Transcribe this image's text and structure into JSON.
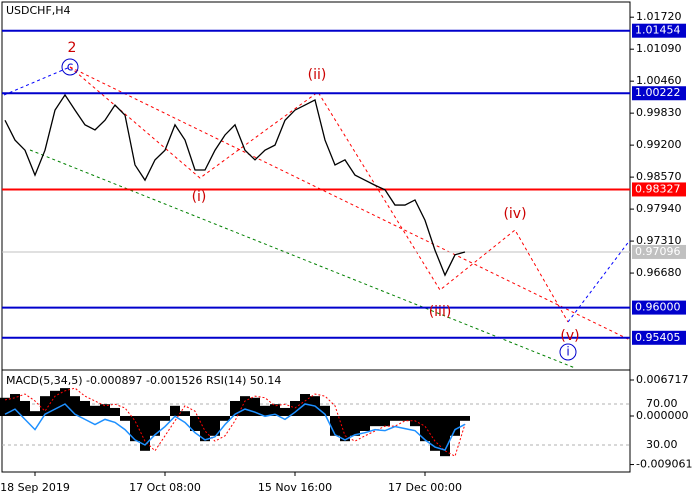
{
  "chart_data": [
    {
      "type": "line",
      "title": "USDCHF,H4",
      "series": [
        {
          "color": "#000000",
          "values": [
            0.9969,
            0.993,
            0.991,
            0.9861,
            0.991,
            0.9989,
            1.0019,
            0.9989,
            0.996,
            0.995,
            0.9969,
            0.9999,
            0.9979,
            0.9881,
            0.9851,
            0.9891,
            0.991,
            0.996,
            0.993,
            0.9871,
            0.9871,
            0.991,
            0.994,
            0.996,
            0.991,
            0.9891,
            0.991,
            0.992,
            0.9969,
            0.9989,
            0.9999,
            1.0009,
            0.993,
            0.9881,
            0.9891,
            0.9861,
            0.9851,
            0.9841,
            0.9832,
            0.9802,
            0.9802,
            0.9812,
            0.9772,
            0.9713,
            0.9664,
            0.9704,
            0.97096
          ]
        }
      ],
      "ylim": [
        0.9481,
        1.0198
      ],
      "yticks": [
        {
          "value": 1.0172,
          "label": "1.01720"
        },
        {
          "value": 1.0109,
          "label": "1.01090"
        },
        {
          "value": 1.0046,
          "label": "1.00460"
        },
        {
          "value": 0.9983,
          "label": "0.99830"
        },
        {
          "value": 0.992,
          "label": "0.99200"
        },
        {
          "value": 0.9857,
          "label": "0.98570"
        },
        {
          "value": 0.9794,
          "label": "0.97940"
        },
        {
          "value": 0.9731,
          "label": "0.97310"
        },
        {
          "value": 0.9668,
          "label": "0.96680"
        }
      ],
      "levels": [
        {
          "value": 1.01454,
          "label": "1.01454",
          "color": "#0000cc"
        },
        {
          "value": 1.00222,
          "label": "1.00222",
          "color": "#0000cc"
        },
        {
          "value": 0.98327,
          "label": "0.98327",
          "color": "#ff0000"
        },
        {
          "value": 0.97096,
          "label": "0.97096",
          "color": "#c0c0c0"
        },
        {
          "value": 0.96,
          "label": "0.96000",
          "color": "#0000cc"
        },
        {
          "value": 0.95405,
          "label": "0.95405",
          "color": "#0000cc"
        }
      ],
      "annotations": [
        "2",
        "c",
        "(ii)",
        "(i)",
        "(iii)",
        "(iv)",
        "(v)",
        "i"
      ]
    },
    {
      "type": "bar",
      "title": "MACD(5,34,5) -0.000897 -0.001526 RSI(14) 50.14",
      "categories": [
        null,
        null,
        null,
        "18 Sep 2019",
        null,
        null,
        null,
        null,
        null,
        null,
        null,
        null,
        null,
        null,
        null,
        null,
        "17 Oct 08:00",
        null,
        null,
        null,
        null,
        null,
        null,
        null,
        null,
        null,
        null,
        null,
        null,
        "15 Nov 16:00",
        null,
        null,
        null,
        null,
        null,
        null,
        null,
        null,
        null,
        null,
        null,
        null,
        "17 Dec 00:00",
        null,
        null,
        null,
        null
      ],
      "series": [
        {
          "color": "#000000",
          "values": [
            0.0034,
            0.0041,
            0.0028,
            0.0009,
            0.0037,
            0.0047,
            0.0052,
            0.0037,
            0.0028,
            0.0019,
            0.0022,
            0.0015,
            -0.0009,
            -0.0047,
            -0.0065,
            -0.0037,
            -0.0009,
            0.0019,
            0.0009,
            -0.0028,
            -0.0047,
            -0.0037,
            -0.0009,
            0.0028,
            0.0037,
            0.0034,
            0.0019,
            0.0022,
            0.0015,
            0.0028,
            0.0041,
            0.0037,
            0.0019,
            -0.0037,
            -0.0047,
            -0.0037,
            -0.0028,
            -0.0019,
            -0.0019,
            -0.0009,
            -0.0009,
            -0.0019,
            -0.0047,
            -0.0065,
            -0.0075,
            -0.0037,
            -0.000897
          ]
        },
        {
          "color": "#ff0000",
          "values": [
            0.003,
            0.0034,
            0.0041,
            0.0028,
            0.0009,
            0.0037,
            0.0047,
            0.0052,
            0.0037,
            0.0028,
            0.0019,
            0.0022,
            0.0015,
            -0.0009,
            -0.0047,
            -0.0065,
            -0.0037,
            -0.0009,
            0.0019,
            0.0009,
            -0.0028,
            -0.0047,
            -0.0037,
            -0.0009,
            0.0028,
            0.0037,
            0.0034,
            0.0019,
            0.0022,
            0.0015,
            0.0028,
            0.0041,
            0.0037,
            0.0019,
            -0.0037,
            -0.0047,
            -0.0037,
            -0.0028,
            -0.0019,
            -0.0019,
            -0.0009,
            -0.0009,
            -0.0019,
            -0.0047,
            -0.0065,
            -0.0075,
            -0.001526
          ]
        },
        {
          "color": "#1e90ff",
          "axis": "y2",
          "values": [
            60,
            65,
            55,
            45,
            60,
            65,
            70,
            60,
            55,
            50,
            55,
            52,
            45,
            35,
            30,
            40,
            48,
            58,
            52,
            42,
            35,
            38,
            50,
            60,
            65,
            62,
            58,
            60,
            55,
            62,
            70,
            68,
            60,
            40,
            35,
            40,
            42,
            45,
            44,
            48,
            46,
            44,
            35,
            28,
            25,
            45,
            50.14
          ]
        }
      ],
      "ylim": [
        -0.01008,
        0.00821
      ],
      "yticks": [
        0.006717,
        {
          "value": 0,
          "label": "0.000000"
        },
        -0.009061
      ],
      "y2lim": [
        5.6,
        101.2
      ],
      "y2ticks": [
        {
          "value": 70,
          "label": "70.00"
        },
        {
          "value": 30,
          "label": "30.00"
        }
      ]
    }
  ]
}
